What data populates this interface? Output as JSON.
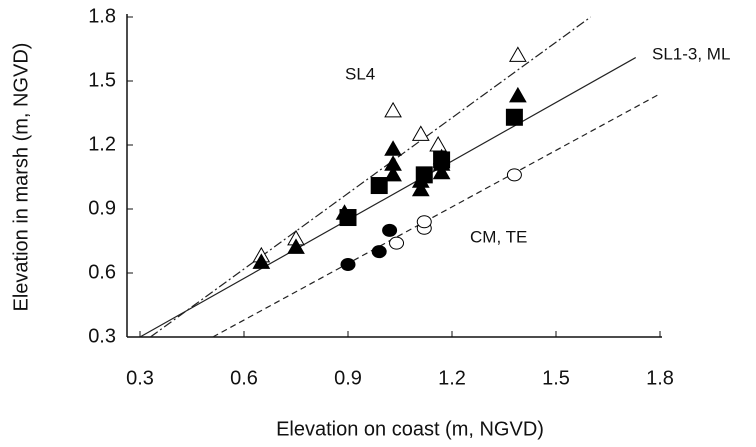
{
  "chart_data": {
    "type": "scatter",
    "xlabel": "Elevation on coast (m, NGVD)",
    "ylabel": "Elevation in marsh (m, NGVD)",
    "xlim": [
      0.3,
      1.8
    ],
    "ylim": [
      0.3,
      1.8
    ],
    "xticks": [
      0.3,
      0.6,
      0.9,
      1.2,
      1.5,
      1.8
    ],
    "yticks": [
      0.3,
      0.6,
      0.9,
      1.2,
      1.5,
      1.8
    ],
    "series": [
      {
        "marker": "triangle",
        "filled": false,
        "x": [
          0.65,
          0.75,
          1.03,
          1.11,
          1.16,
          1.39
        ],
        "y": [
          0.68,
          0.76,
          1.36,
          1.25,
          1.2,
          1.62
        ]
      },
      {
        "marker": "triangle",
        "filled": true,
        "x": [
          0.65,
          0.75,
          0.89,
          1.03,
          1.03,
          1.03,
          1.11,
          1.11,
          1.17,
          1.17,
          1.17,
          1.39
        ],
        "y": [
          0.65,
          0.72,
          0.88,
          1.18,
          1.11,
          1.06,
          1.03,
          0.99,
          1.14,
          1.11,
          1.07,
          1.43
        ]
      },
      {
        "marker": "square",
        "filled": true,
        "x": [
          0.9,
          0.99,
          1.12,
          1.17,
          1.38
        ],
        "y": [
          0.86,
          1.01,
          1.06,
          1.13,
          1.33
        ]
      },
      {
        "marker": "circle",
        "filled": true,
        "x": [
          0.9,
          0.99,
          1.02
        ],
        "y": [
          0.64,
          0.7,
          0.8
        ]
      },
      {
        "marker": "circle",
        "filled": false,
        "x": [
          1.04,
          1.12,
          1.12,
          1.38
        ],
        "y": [
          0.74,
          0.81,
          0.84,
          1.06
        ]
      }
    ],
    "lines": [
      {
        "label": "SL4",
        "style": "dashdot",
        "x": [
          0.33,
          1.6
        ],
        "y": [
          0.3,
          1.8
        ]
      },
      {
        "label": "SL1-3, ML",
        "style": "solid",
        "x": [
          0.3,
          1.73
        ],
        "y": [
          0.3,
          1.61
        ]
      },
      {
        "label": "CM, TE",
        "style": "dashed",
        "x": [
          0.51,
          1.8
        ],
        "y": [
          0.3,
          1.44
        ]
      }
    ]
  }
}
